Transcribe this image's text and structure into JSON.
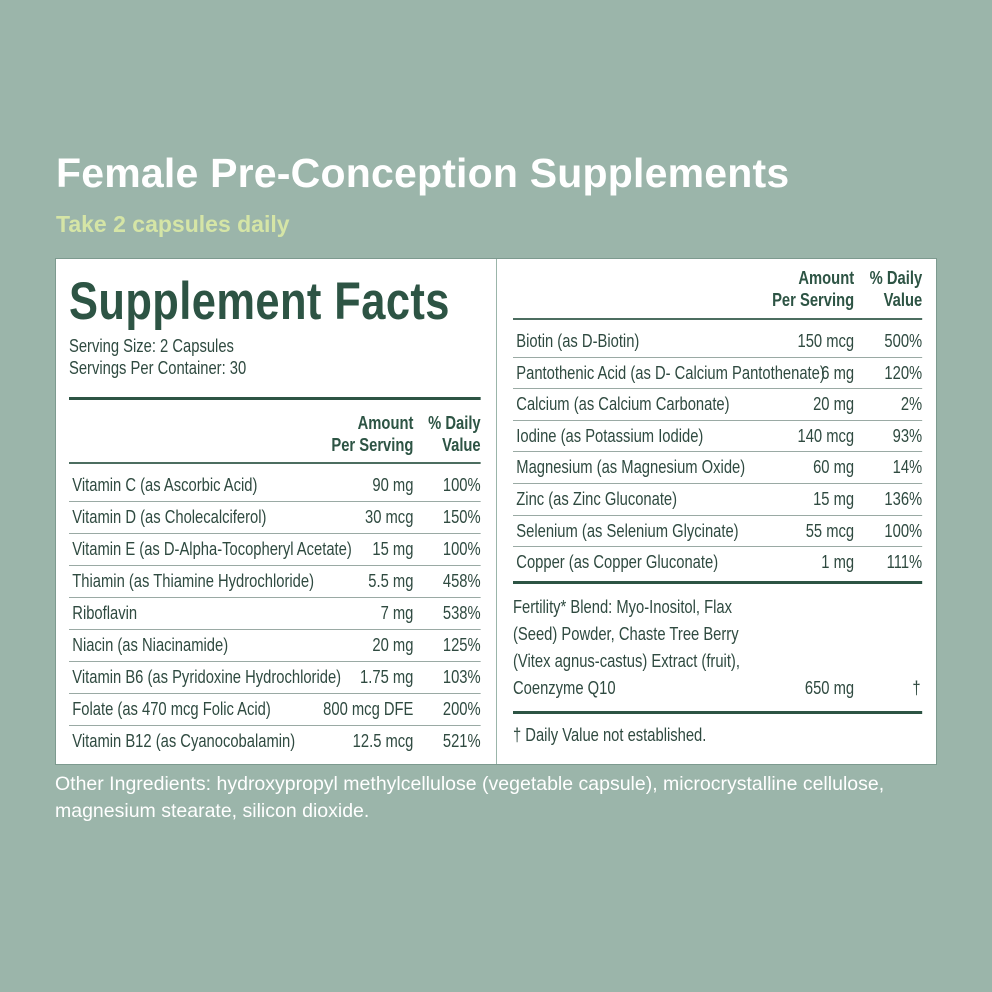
{
  "header": {
    "title": "Female Pre-Conception Supplements",
    "subtitle": "Take 2 capsules daily"
  },
  "facts": {
    "heading": "Supplement Facts",
    "serving_size": "Serving Size: 2 Capsules",
    "servings_per_container": "Servings Per Container: 30",
    "col_amount": [
      "Amount",
      "Per Serving"
    ],
    "col_dv": [
      "% Daily",
      "Value"
    ],
    "left_rows": [
      {
        "name": "Vitamin C (as Ascorbic Acid)",
        "amount": "90 mg",
        "dv": "100%"
      },
      {
        "name": "Vitamin D (as Cholecalciferol)",
        "amount": "30 mcg",
        "dv": "150%"
      },
      {
        "name": "Vitamin E (as D-Alpha-Tocopheryl Acetate)",
        "amount": "15 mg",
        "dv": "100%"
      },
      {
        "name": "Thiamin (as Thiamine Hydrochloride)",
        "amount": "5.5 mg",
        "dv": "458%"
      },
      {
        "name": "Riboflavin",
        "amount": "7 mg",
        "dv": "538%"
      },
      {
        "name": "Niacin (as Niacinamide)",
        "amount": "20 mg",
        "dv": "125%"
      },
      {
        "name": "Vitamin B6 (as Pyridoxine Hydrochloride)",
        "amount": "1.75 mg",
        "dv": "103%"
      },
      {
        "name": "Folate (as 470 mcg Folic Acid)",
        "amount": "800 mcg DFE",
        "dv": "200%"
      },
      {
        "name": "Vitamin B12 (as Cyanocobalamin)",
        "amount": "12.5 mcg",
        "dv": "521%"
      }
    ],
    "right_rows": [
      {
        "name": "Biotin (as D-Biotin)",
        "amount": "150 mcg",
        "dv": "500%"
      },
      {
        "name": "Pantothenic Acid (as D- Calcium Pantothenate)",
        "amount": "6 mg",
        "dv": "120%"
      },
      {
        "name": "Calcium (as Calcium Carbonate)",
        "amount": "20 mg",
        "dv": "2%"
      },
      {
        "name": "Iodine (as Potassium Iodide)",
        "amount": "140 mcg",
        "dv": "93%"
      },
      {
        "name": "Magnesium (as Magnesium Oxide)",
        "amount": "60 mg",
        "dv": "14%"
      },
      {
        "name": "Zinc (as Zinc Gluconate)",
        "amount": "15 mg",
        "dv": "136%"
      },
      {
        "name": "Selenium (as Selenium Glycinate)",
        "amount": "55 mcg",
        "dv": "100%"
      },
      {
        "name": "Copper (as Copper Gluconate)",
        "amount": "1 mg",
        "dv": "111%"
      }
    ],
    "blend": {
      "lines": [
        "Fertility* Blend: Myo-Inositol, Flax",
        "(Seed) Powder, Chaste Tree Berry",
        "(Vitex agnus-castus) Extract (fruit),",
        "Coenzyme Q10"
      ],
      "amount": "650 mg",
      "dv": "†"
    },
    "footnote": "† Daily Value not established."
  },
  "other_ingredients": "Other Ingredients: hydroxypropyl methylcellulose (vegetable capsule), microcrystalline cellulose, magnesium stearate, silicon dioxide.",
  "colors": {
    "background": "#9bb5aa",
    "brand_green": "#2d5444",
    "accent": "#d5e5a6"
  }
}
